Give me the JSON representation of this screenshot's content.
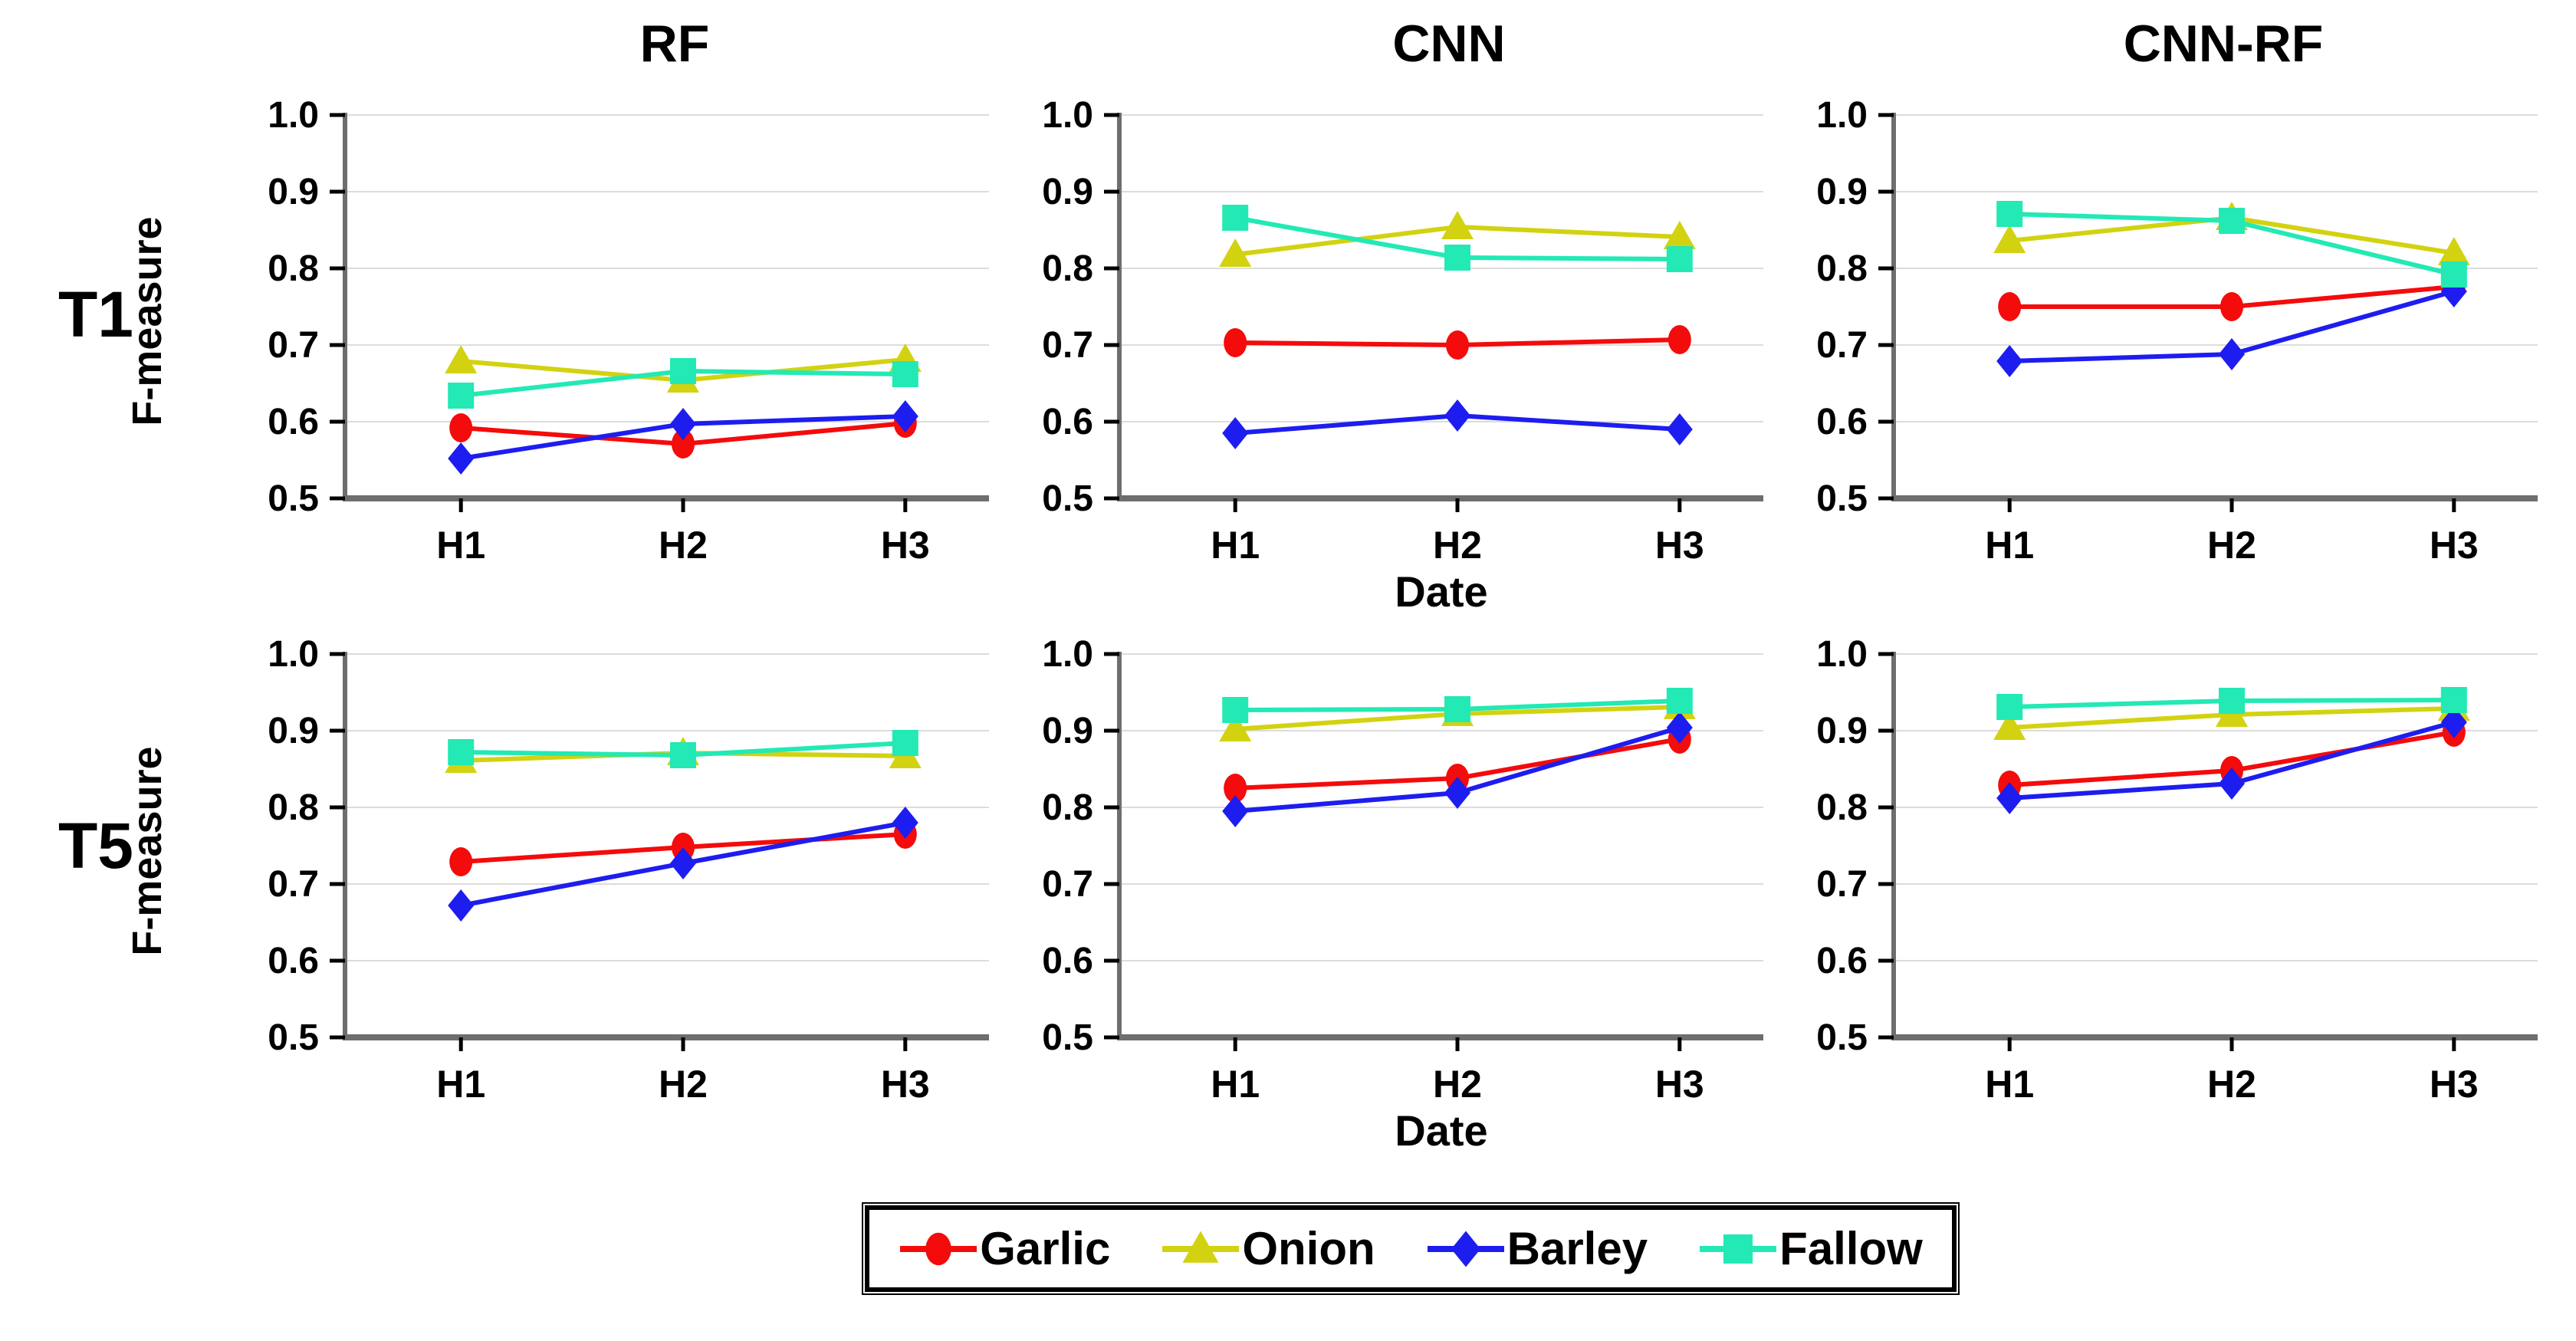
{
  "figure": {
    "background": "#ffffff",
    "rows": [
      {
        "label": "T1"
      },
      {
        "label": "T5"
      }
    ],
    "columns": [
      {
        "title": "RF"
      },
      {
        "title": "CNN"
      },
      {
        "title": "CNN-RF"
      }
    ]
  },
  "axis": {
    "ylabel": "F-measure",
    "xlabel": "Date",
    "categories": [
      "H1",
      "H2",
      "H3"
    ],
    "y_ticks": [
      "1.0",
      "0.9",
      "0.8",
      "0.7",
      "0.6",
      "0.5"
    ],
    "ylim": [
      0.5,
      1.0
    ],
    "grid": "horizontal",
    "axis_color": "#6e6e6e",
    "grid_color": "#dcdcdc",
    "tick_color": "#000000"
  },
  "series_meta": [
    {
      "name": "Garlic",
      "color": "#f40b0b",
      "marker": "circle"
    },
    {
      "name": "Onion",
      "color": "#d2d211",
      "marker": "triangle"
    },
    {
      "name": "Barley",
      "color": "#1d1df0",
      "marker": "diamond"
    },
    {
      "name": "Fallow",
      "color": "#23e9b4",
      "marker": "square"
    }
  ],
  "legend": {
    "position": "bottom",
    "items": [
      {
        "label": "Garlic"
      },
      {
        "label": "Onion"
      },
      {
        "label": "Barley"
      },
      {
        "label": "Fallow"
      }
    ]
  },
  "chart_data": [
    {
      "type": "line",
      "row": "T1",
      "column": "RF",
      "x": [
        "H1",
        "H2",
        "H3"
      ],
      "ylim": [
        0.5,
        1.0
      ],
      "series": [
        {
          "name": "Garlic",
          "values": [
            0.592,
            0.571,
            0.598
          ]
        },
        {
          "name": "Onion",
          "values": [
            0.679,
            0.654,
            0.681
          ]
        },
        {
          "name": "Barley",
          "values": [
            0.552,
            0.597,
            0.607
          ]
        },
        {
          "name": "Fallow",
          "values": [
            0.634,
            0.666,
            0.662
          ]
        }
      ]
    },
    {
      "type": "line",
      "row": "T1",
      "column": "CNN",
      "x": [
        "H1",
        "H2",
        "H3"
      ],
      "ylim": [
        0.5,
        1.0
      ],
      "series": [
        {
          "name": "Garlic",
          "values": [
            0.703,
            0.7,
            0.707
          ]
        },
        {
          "name": "Onion",
          "values": [
            0.818,
            0.854,
            0.841
          ]
        },
        {
          "name": "Barley",
          "values": [
            0.585,
            0.608,
            0.59
          ]
        },
        {
          "name": "Fallow",
          "values": [
            0.866,
            0.814,
            0.812
          ]
        }
      ]
    },
    {
      "type": "line",
      "row": "T1",
      "column": "CNN-RF",
      "x": [
        "H1",
        "H2",
        "H3"
      ],
      "ylim": [
        0.5,
        1.0
      ],
      "series": [
        {
          "name": "Garlic",
          "values": [
            0.75,
            0.75,
            0.776
          ]
        },
        {
          "name": "Onion",
          "values": [
            0.836,
            0.866,
            0.82
          ]
        },
        {
          "name": "Barley",
          "values": [
            0.679,
            0.688,
            0.77
          ]
        },
        {
          "name": "Fallow",
          "values": [
            0.871,
            0.862,
            0.792
          ]
        }
      ]
    },
    {
      "type": "line",
      "row": "T5",
      "column": "RF",
      "x": [
        "H1",
        "H2",
        "H3"
      ],
      "ylim": [
        0.5,
        1.0
      ],
      "series": [
        {
          "name": "Garlic",
          "values": [
            0.729,
            0.748,
            0.765
          ]
        },
        {
          "name": "Onion",
          "values": [
            0.861,
            0.871,
            0.867
          ]
        },
        {
          "name": "Barley",
          "values": [
            0.672,
            0.727,
            0.78
          ]
        },
        {
          "name": "Fallow",
          "values": [
            0.872,
            0.868,
            0.884
          ]
        }
      ]
    },
    {
      "type": "line",
      "row": "T5",
      "column": "CNN",
      "x": [
        "H1",
        "H2",
        "H3"
      ],
      "ylim": [
        0.5,
        1.0
      ],
      "series": [
        {
          "name": "Garlic",
          "values": [
            0.825,
            0.838,
            0.889
          ]
        },
        {
          "name": "Onion",
          "values": [
            0.902,
            0.922,
            0.931
          ]
        },
        {
          "name": "Barley",
          "values": [
            0.795,
            0.819,
            0.904
          ]
        },
        {
          "name": "Fallow",
          "values": [
            0.927,
            0.928,
            0.939
          ]
        }
      ]
    },
    {
      "type": "line",
      "row": "T5",
      "column": "CNN-RF",
      "x": [
        "H1",
        "H2",
        "H3"
      ],
      "ylim": [
        0.5,
        1.0
      ],
      "series": [
        {
          "name": "Garlic",
          "values": [
            0.829,
            0.848,
            0.898
          ]
        },
        {
          "name": "Onion",
          "values": [
            0.904,
            0.921,
            0.929
          ]
        },
        {
          "name": "Barley",
          "values": [
            0.812,
            0.831,
            0.911
          ]
        },
        {
          "name": "Fallow",
          "values": [
            0.931,
            0.939,
            0.94
          ]
        }
      ]
    }
  ]
}
